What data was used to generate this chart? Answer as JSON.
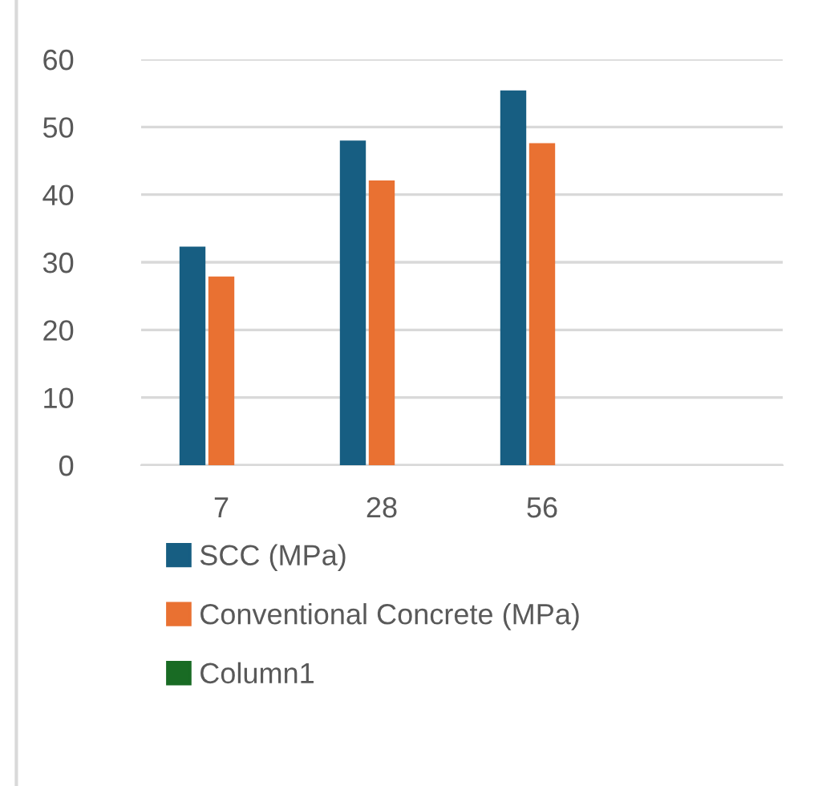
{
  "chart_data": {
    "type": "bar",
    "categories": [
      "7",
      "28",
      "56",
      null
    ],
    "series": [
      {
        "name": "SCC (MPa)",
        "color": "#175e82",
        "values": [
          32.3,
          48.0,
          55.4,
          null
        ]
      },
      {
        "name": "Conventional Concrete (MPa)",
        "color": "#e97132",
        "values": [
          27.9,
          42.1,
          47.6,
          null
        ]
      },
      {
        "name": "Column1",
        "color": "#196b24",
        "values": [
          null,
          null,
          null,
          null
        ]
      }
    ],
    "ylim": [
      0,
      60
    ],
    "yticks": [
      0,
      10,
      20,
      30,
      40,
      50,
      60
    ],
    "grid": "y",
    "legend": "bottom"
  }
}
